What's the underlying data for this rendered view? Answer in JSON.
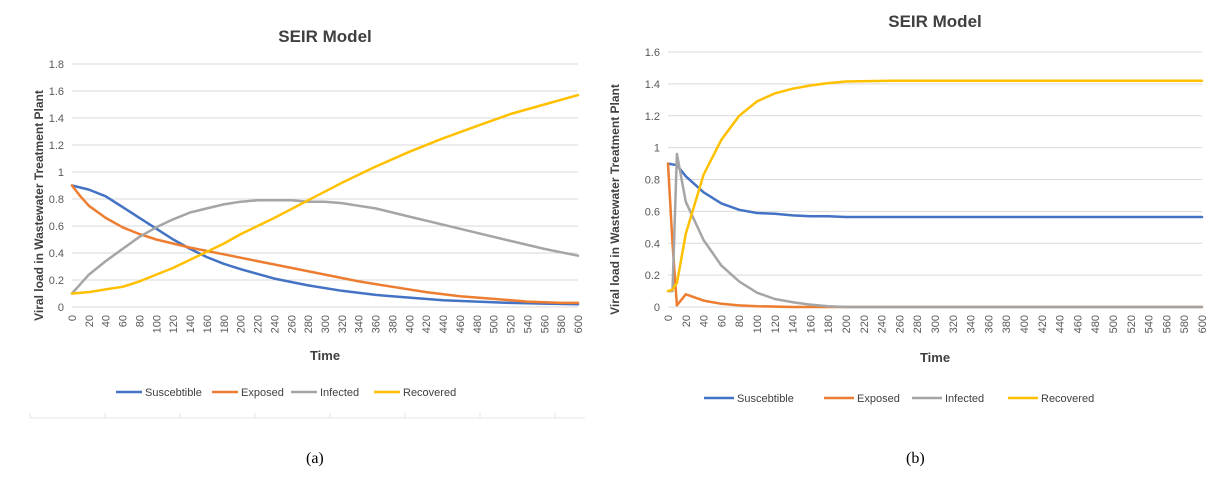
{
  "colors": {
    "Suscebtible": "#4472c4",
    "Exposed": "#ed7d31",
    "Infected": "#a5a5a5",
    "Recovered": "#ffc000"
  },
  "captions": {
    "a": "(a)",
    "b": "(b)"
  },
  "chart_data": [
    {
      "type": "line",
      "title": "SEIR Model",
      "xlabel": "Time",
      "ylabel": "Viral load in Wastewater Treatment Plant",
      "xlim": [
        0,
        600
      ],
      "ylim": [
        0,
        1.8
      ],
      "yticks": [
        0,
        0.2,
        0.4,
        0.6,
        0.8,
        1,
        1.2,
        1.4,
        1.6,
        1.8
      ],
      "xticks": [
        0,
        20,
        40,
        60,
        80,
        100,
        120,
        140,
        160,
        180,
        200,
        220,
        240,
        260,
        280,
        300,
        320,
        340,
        360,
        380,
        400,
        420,
        440,
        460,
        480,
        500,
        520,
        540,
        560,
        580,
        600
      ],
      "grid": true,
      "legend": "bottom",
      "series": [
        {
          "name": "Suscebtible",
          "x": [
            0,
            20,
            40,
            60,
            80,
            100,
            120,
            140,
            160,
            180,
            200,
            240,
            280,
            320,
            360,
            400,
            440,
            480,
            520,
            560,
            600
          ],
          "y": [
            0.9,
            0.87,
            0.82,
            0.74,
            0.66,
            0.58,
            0.5,
            0.43,
            0.37,
            0.32,
            0.28,
            0.21,
            0.16,
            0.12,
            0.09,
            0.07,
            0.05,
            0.04,
            0.03,
            0.025,
            0.02
          ]
        },
        {
          "name": "Exposed",
          "x": [
            0,
            10,
            20,
            40,
            60,
            80,
            100,
            140,
            180,
            220,
            260,
            300,
            340,
            380,
            420,
            460,
            500,
            540,
            580,
            600
          ],
          "y": [
            0.9,
            0.82,
            0.75,
            0.66,
            0.59,
            0.54,
            0.5,
            0.44,
            0.39,
            0.34,
            0.29,
            0.24,
            0.19,
            0.15,
            0.11,
            0.08,
            0.06,
            0.04,
            0.03,
            0.03
          ]
        },
        {
          "name": "Infected",
          "x": [
            0,
            10,
            20,
            40,
            60,
            80,
            100,
            120,
            140,
            160,
            180,
            200,
            220,
            260,
            280,
            300,
            320,
            340,
            360,
            380,
            400,
            440,
            480,
            520,
            560,
            600
          ],
          "y": [
            0.1,
            0.17,
            0.24,
            0.34,
            0.43,
            0.52,
            0.59,
            0.65,
            0.7,
            0.73,
            0.76,
            0.78,
            0.79,
            0.79,
            0.78,
            0.78,
            0.77,
            0.75,
            0.73,
            0.7,
            0.67,
            0.61,
            0.55,
            0.49,
            0.43,
            0.38
          ]
        },
        {
          "name": "Recovered",
          "x": [
            0,
            20,
            40,
            60,
            80,
            100,
            120,
            140,
            160,
            180,
            200,
            240,
            280,
            320,
            360,
            400,
            440,
            480,
            520,
            560,
            600
          ],
          "y": [
            0.1,
            0.11,
            0.13,
            0.15,
            0.19,
            0.24,
            0.29,
            0.35,
            0.41,
            0.47,
            0.54,
            0.66,
            0.79,
            0.92,
            1.04,
            1.15,
            1.25,
            1.34,
            1.43,
            1.5,
            1.57
          ]
        }
      ]
    },
    {
      "type": "line",
      "title": "SEIR Model",
      "xlabel": "Time",
      "ylabel": "Viral load in Wastewater Treatment Plant",
      "xlim": [
        0,
        600
      ],
      "ylim": [
        0,
        1.6
      ],
      "yticks": [
        0,
        0.2,
        0.4,
        0.6,
        0.8,
        1,
        1.2,
        1.4,
        1.6
      ],
      "xticks": [
        0,
        20,
        40,
        60,
        80,
        100,
        120,
        140,
        160,
        180,
        200,
        220,
        240,
        260,
        280,
        300,
        320,
        340,
        360,
        380,
        400,
        420,
        440,
        460,
        480,
        500,
        520,
        540,
        560,
        580,
        600
      ],
      "grid": true,
      "legend": "bottom",
      "series": [
        {
          "name": "Suscebtible",
          "x": [
            0,
            10,
            20,
            40,
            60,
            80,
            100,
            120,
            140,
            160,
            180,
            200,
            600
          ],
          "y": [
            0.9,
            0.89,
            0.82,
            0.72,
            0.65,
            0.61,
            0.59,
            0.585,
            0.575,
            0.57,
            0.57,
            0.565,
            0.565
          ]
        },
        {
          "name": "Exposed",
          "x": [
            0,
            5,
            10,
            20,
            40,
            60,
            80,
            100,
            140,
            200,
            600
          ],
          "y": [
            0.9,
            0.4,
            0.01,
            0.08,
            0.04,
            0.02,
            0.01,
            0.005,
            0.0,
            0.0,
            0.0
          ]
        },
        {
          "name": "Infected",
          "x": [
            0,
            5,
            10,
            20,
            40,
            60,
            80,
            100,
            120,
            140,
            160,
            180,
            200,
            600
          ],
          "y": [
            0.1,
            0.1,
            0.96,
            0.66,
            0.42,
            0.26,
            0.16,
            0.09,
            0.05,
            0.03,
            0.015,
            0.005,
            0.0,
            0.0
          ]
        },
        {
          "name": "Recovered",
          "x": [
            0,
            5,
            10,
            20,
            40,
            60,
            80,
            100,
            120,
            140,
            160,
            180,
            200,
            250,
            600
          ],
          "y": [
            0.1,
            0.11,
            0.15,
            0.46,
            0.83,
            1.05,
            1.2,
            1.29,
            1.34,
            1.37,
            1.39,
            1.405,
            1.415,
            1.42,
            1.42
          ]
        }
      ]
    }
  ]
}
